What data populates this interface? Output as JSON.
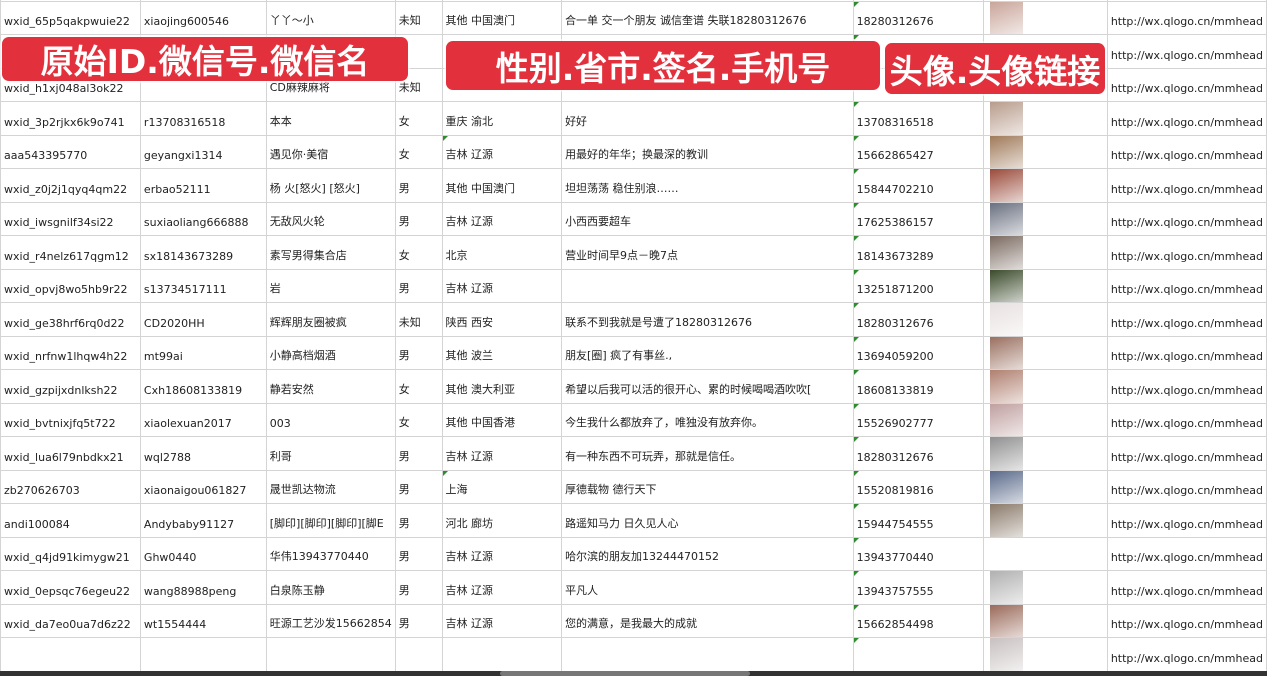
{
  "banners": [
    "原始ID.微信号.微信名",
    "性别.省市.签名.手机号",
    "头像.头像链接"
  ],
  "rows": [
    [
      "wxid_65p5qakpwuie22",
      "xiaojing600546",
      "丫丫～小",
      "未知",
      "其他 中国澳门",
      "合一单 交一个朋友 诚信奎谱 失联18280312676",
      "18280312676",
      "http://wx.qlogo.cn/mmhead"
    ],
    [
      "",
      "",
      "",
      "",
      "",
      "",
      "",
      "http://wx.qlogo.cn/mmhead"
    ],
    [
      "wxid_h1xj048al3ok22",
      "",
      "CD麻辣麻将",
      "未知",
      "",
      "",
      "",
      "http://wx.qlogo.cn/mmhead"
    ],
    [
      "wxid_3p2rjkx6k9o741",
      "r13708316518",
      "本本",
      "女",
      "重庆 渝北",
      "好好",
      "13708316518",
      "http://wx.qlogo.cn/mmhead"
    ],
    [
      "aaa543395770",
      "geyangxi1314",
      "遇见你·美宿",
      "女",
      "吉林 辽源",
      "用最好的年华；换最深的教训",
      "15662865427",
      "http://wx.qlogo.cn/mmhead"
    ],
    [
      "wxid_z0j2j1qyq4qm22",
      "erbao52111",
      "杨 火[怒火] [怒火]",
      "男",
      "其他 中国澳门",
      "坦坦荡荡 稳住别浪……",
      "15844702210",
      "http://wx.qlogo.cn/mmhead"
    ],
    [
      "wxid_iwsgnilf34si22",
      "suxiaoliang666888",
      "无敌风火轮",
      "男",
      "吉林 辽源",
      "小西西要超车",
      "17625386157",
      "http://wx.qlogo.cn/mmhead"
    ],
    [
      "wxid_r4nelz617qgm12",
      "sx18143673289",
      "素写男得集合店",
      "女",
      "北京",
      "营业时间早9点－晚7点",
      "18143673289",
      "http://wx.qlogo.cn/mmhead"
    ],
    [
      "wxid_opvj8wo5hb9r22",
      "s13734517111",
      "岩",
      "男",
      "吉林 辽源",
      "",
      "13251871200",
      "http://wx.qlogo.cn/mmhead"
    ],
    [
      "wxid_ge38hrf6rq0d22",
      "CD2020HH",
      "辉辉朋友圈被疯",
      "未知",
      "陕西 西安",
      "联系不到我就是号遭了18280312676",
      "18280312676",
      "http://wx.qlogo.cn/mmhead"
    ],
    [
      "wxid_nrfnw1lhqw4h22",
      "mt99ai",
      "小静高档烟酒",
      "男",
      "其他 波兰",
      "朋友[圈] 疯了有事丝.,",
      "13694059200",
      "http://wx.qlogo.cn/mmhead"
    ],
    [
      "wxid_gzpijxdnlksh22",
      "Cxh18608133819",
      "静若安然",
      "女",
      "其他 澳大利亚",
      "希望以后我可以活的很开心、累的时候喝喝酒吹吹[",
      "18608133819",
      "http://wx.qlogo.cn/mmhead"
    ],
    [
      "wxid_bvtnixjfq5t722",
      "xiaolexuan2017",
      "003",
      "女",
      "其他 中国香港",
      "今生我什么都放弃了，唯独没有放弃你。",
      "15526902777",
      "http://wx.qlogo.cn/mmhead"
    ],
    [
      "wxid_lua6l79nbdkx21",
      "wql2788",
      "利哥",
      "男",
      "吉林 辽源",
      "有一种东西不可玩弄，那就是信任。",
      "18280312676",
      "http://wx.qlogo.cn/mmhead"
    ],
    [
      "zb270626703",
      "xiaonaigou061827",
      "晟世凯达物流",
      "男",
      "上海",
      "厚德载物 德行天下",
      "15520819816",
      "http://wx.qlogo.cn/mmhead"
    ],
    [
      "andi100084",
      "Andybaby91127",
      "[脚印][脚印][脚印][脚E",
      "男",
      "河北 廊坊",
      "路遥知马力 日久见人心",
      "15944754555",
      "http://wx.qlogo.cn/mmhead"
    ],
    [
      "wxid_q4jd91kimygw21",
      "Ghw0440",
      "华伟13943770440",
      "男",
      "吉林 辽源",
      "哈尔滨的朋友加13244470152",
      "13943770440",
      "http://wx.qlogo.cn/mmhead"
    ],
    [
      "wxid_0epsqc76egeu22",
      "wang88988peng",
      "白泉陈玉静",
      "男",
      "吉林 辽源",
      "平凡人",
      "13943757555",
      "http://wx.qlogo.cn/mmhead"
    ],
    [
      "wxid_da7eo0ua7d6z22",
      "wt1554444",
      "旺源工艺沙发15662854",
      "男",
      "吉林 辽源",
      "您的满意，是我最大的成就",
      "15662854498",
      "http://wx.qlogo.cn/mmhead"
    ],
    [
      "",
      "",
      "",
      "",
      "",
      "",
      "",
      "http://wx.qlogo.cn/mmhead"
    ]
  ],
  "avatar_colors": [
    "#c9a59a",
    "#8a9bbd",
    "#ddd",
    "#b89c8c",
    "#a07a5a",
    "#9a4a3a",
    "#6a7080",
    "#7a6a60",
    "#3a4a2a",
    "#e8e0e0",
    "#9a7060",
    "#b08070",
    "#c0a0a0",
    "#909090",
    "#5a6a8a",
    "#8a7a6a",
    "#ffffff",
    "#b0b0b0",
    "#9a6a5a",
    "#c8c0c0"
  ],
  "colors": {
    "banner": "#e2303c",
    "grid": "#d4d4d4"
  }
}
